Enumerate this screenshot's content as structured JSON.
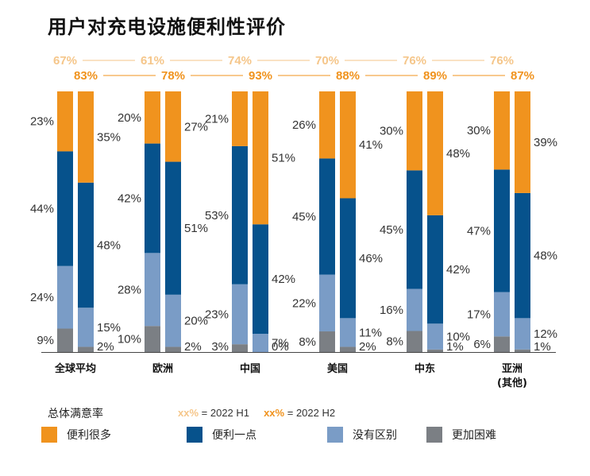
{
  "title": "用户对充电设施便利性评价",
  "legend": {
    "title": "总体满意率",
    "period_key": {
      "h1_marker": "xx%",
      "h1_text": "= 2022 H1",
      "h2_marker": "xx%",
      "h2_text": "= 2022 H2"
    },
    "items": [
      {
        "label": "便利很多",
        "color": "#f0931e"
      },
      {
        "label": "便利一点",
        "color": "#06528c"
      },
      {
        "label": "没有区别",
        "color": "#7a9cc6"
      },
      {
        "label": "更加困难",
        "color": "#7b7f84"
      }
    ]
  },
  "chart_data": {
    "type": "bar",
    "stacked": true,
    "title": "用户对充电设施便利性评价",
    "periods": [
      "2022 H1",
      "2022 H2"
    ],
    "stack_order": [
      "更加困难",
      "没有区别",
      "便利一点",
      "便利很多"
    ],
    "categories": [
      {
        "label": "全球平均",
        "h1": {
          "total": "67%",
          "values": [
            9,
            24,
            44,
            23
          ]
        },
        "h2": {
          "total": "83%",
          "values": [
            2,
            15,
            48,
            35
          ]
        }
      },
      {
        "label": "欧洲",
        "h1": {
          "total": "61%",
          "values": [
            10,
            28,
            42,
            20
          ]
        },
        "h2": {
          "total": "78%",
          "values": [
            2,
            20,
            51,
            27
          ]
        }
      },
      {
        "label": "中国",
        "h1": {
          "total": "74%",
          "values": [
            3,
            23,
            53,
            21
          ]
        },
        "h2": {
          "total": "93%",
          "values": [
            0,
            7,
            42,
            51
          ]
        }
      },
      {
        "label": "美国",
        "h1": {
          "total": "70%",
          "values": [
            8,
            22,
            45,
            26
          ]
        },
        "h2": {
          "total": "88%",
          "values": [
            2,
            11,
            46,
            41
          ]
        }
      },
      {
        "label": "中东",
        "h1": {
          "total": "76%",
          "values": [
            8,
            16,
            45,
            30
          ]
        },
        "h2": {
          "total": "89%",
          "values": [
            1,
            10,
            42,
            48
          ]
        }
      },
      {
        "label": "亚洲\n(其他)",
        "h1": {
          "total": "76%",
          "values": [
            6,
            17,
            47,
            30
          ]
        },
        "h2": {
          "total": "87%",
          "values": [
            1,
            12,
            48,
            39
          ]
        }
      }
    ],
    "colors": {
      "much_easier": "#f0931e",
      "slightly_easier": "#06528c",
      "no_difference": "#7a9cc6",
      "harder": "#7b7f84",
      "h1_total": "#f5c68a",
      "h2_total": "#f0931e"
    }
  }
}
